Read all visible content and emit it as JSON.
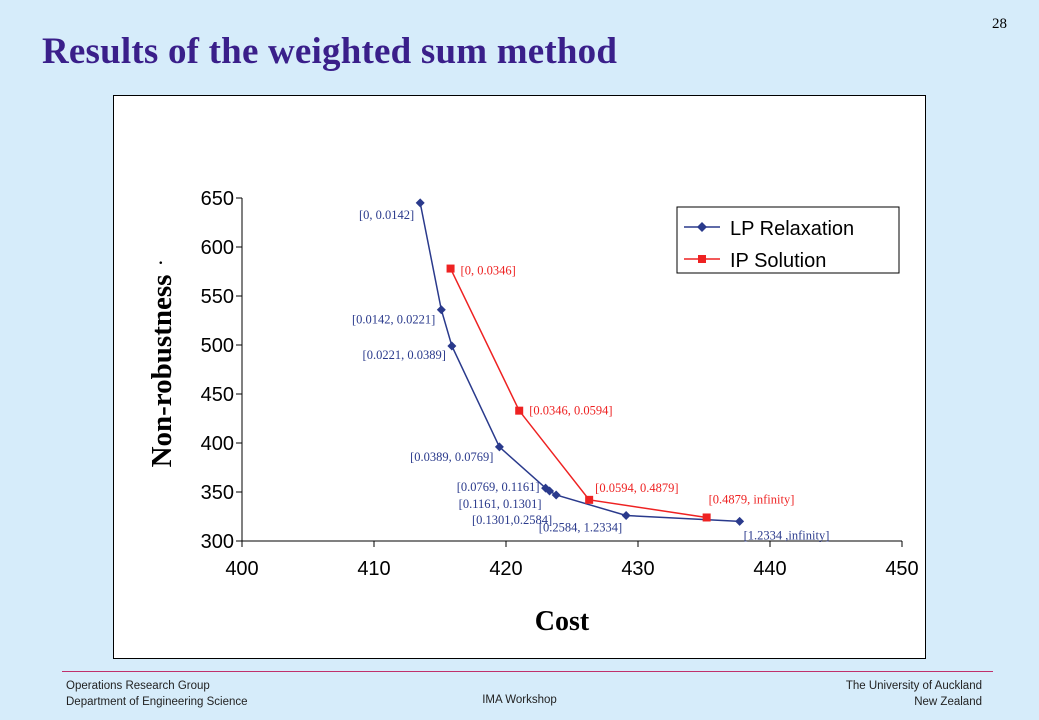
{
  "slide": {
    "title": "Results of the weighted sum method",
    "page_number": "28"
  },
  "footer": {
    "left_line1": "Operations Research Group",
    "left_line2": "Department of Engineering Science",
    "center": "IMA Workshop",
    "right_line1": "The University of Auckland",
    "right_line2": "New Zealand"
  },
  "colors": {
    "title": "#3a1f8a",
    "lp_series": "#2a3a8c",
    "ip_series": "#ee2222",
    "background": "#d6ecfa",
    "footer_rule": "#c0306b"
  },
  "chart_data": {
    "type": "line",
    "title": "",
    "xlabel": "Cost",
    "ylabel": "Non-robustness",
    "xlim": [
      400,
      450
    ],
    "ylim": [
      300,
      650
    ],
    "xticks": [
      400,
      410,
      420,
      430,
      440,
      450
    ],
    "yticks": [
      300,
      350,
      400,
      450,
      500,
      550,
      600,
      650
    ],
    "grid": false,
    "legend": "top-right",
    "series": [
      {
        "name": "LP Relaxation",
        "marker": "diamond",
        "color": "#2a3a8c",
        "points": [
          {
            "x": 413.5,
            "y": 645,
            "label": "[0, 0.0142]"
          },
          {
            "x": 415.1,
            "y": 536,
            "label": "[0.0142, 0.0221]"
          },
          {
            "x": 415.9,
            "y": 499,
            "label": "[0.0221, 0.0389]"
          },
          {
            "x": 419.5,
            "y": 396,
            "label": "[0.0389, 0.0769]"
          },
          {
            "x": 423.0,
            "y": 354,
            "label": "[0.0769, 0.1161]"
          },
          {
            "x": 423.3,
            "y": 351,
            "label": "[0.1161, 0.1301]"
          },
          {
            "x": 423.8,
            "y": 347,
            "label": "[0.1301,0.2584]"
          },
          {
            "x": 429.1,
            "y": 326,
            "label": "[0.2584, 1.2334]"
          },
          {
            "x": 437.7,
            "y": 320,
            "label": "[1.2334 ,infinity]"
          }
        ]
      },
      {
        "name": "IP Solution",
        "marker": "square",
        "color": "#ee2222",
        "points": [
          {
            "x": 415.8,
            "y": 578,
            "label": "[0, 0.0346]"
          },
          {
            "x": 421.0,
            "y": 433,
            "label": "[0.0346, 0.0594]"
          },
          {
            "x": 426.3,
            "y": 342,
            "label": "[0.0594, 0.4879]"
          },
          {
            "x": 435.2,
            "y": 324,
            "label": "[0.4879, infinity]"
          }
        ]
      }
    ]
  }
}
